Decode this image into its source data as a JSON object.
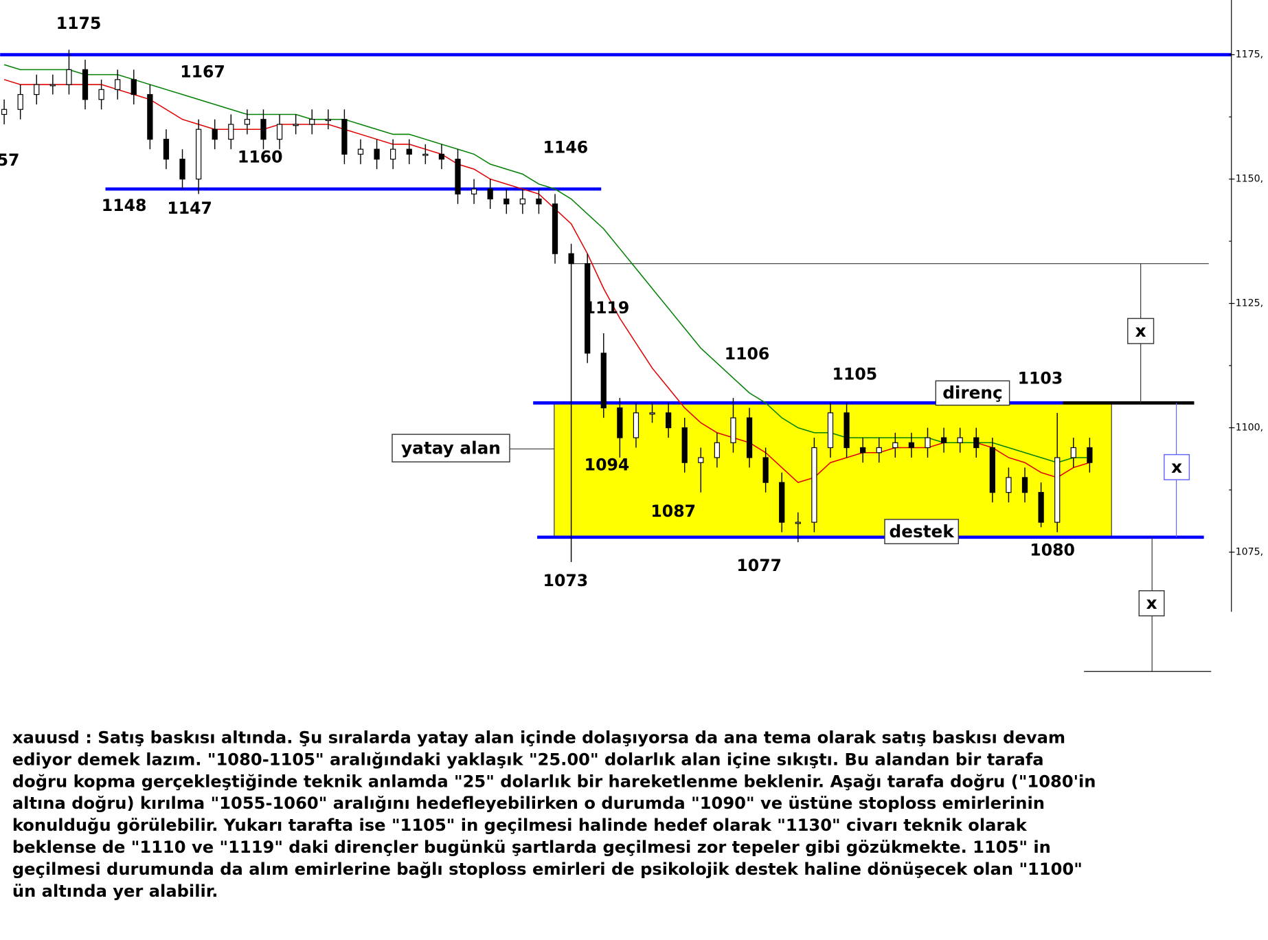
{
  "chart_data": {
    "type": "candlestick",
    "categories": [
      null,
      null,
      null,
      null,
      null,
      null,
      null,
      null,
      null,
      null,
      null,
      null,
      null,
      null,
      null,
      null,
      null,
      null,
      null,
      null,
      null,
      null,
      null,
      null,
      null,
      null,
      null,
      null,
      null,
      null,
      null,
      null,
      null,
      null,
      null,
      null,
      null,
      null,
      null,
      null,
      null,
      null,
      null,
      null,
      null,
      null,
      null,
      null,
      null,
      null,
      null,
      null,
      null,
      null,
      null,
      null,
      null,
      null,
      null,
      null,
      null,
      null,
      null,
      null,
      null,
      null,
      null,
      null
    ],
    "open": [
      1163,
      1164,
      1167,
      1169,
      1169,
      1172,
      1166,
      1168,
      1170,
      1167,
      1158,
      1154,
      1150,
      1160,
      1158,
      1161,
      1162,
      1158,
      1161,
      1161,
      1162,
      1162,
      1155,
      1156,
      1154,
      1156,
      1155,
      1155,
      1154,
      1147,
      1148,
      1146,
      1145,
      1146,
      1145,
      1135,
      1133,
      1115,
      1104,
      1098,
      1103,
      1103,
      1100,
      1093,
      1094,
      1097,
      1102,
      1094,
      1089,
      1081,
      1081,
      1096,
      1103,
      1096,
      1095,
      1096,
      1097,
      1096,
      1098,
      1097,
      1098,
      1096,
      1087,
      1090,
      1087,
      1081,
      1094,
      1096
    ],
    "high": [
      1166,
      1169,
      1171,
      1171,
      1176,
      1174,
      1170,
      1172,
      1172,
      1169,
      1160,
      1156,
      1162,
      1162,
      1163,
      1164,
      1164,
      1163,
      1163,
      1164,
      1164,
      1164,
      1158,
      1158,
      1158,
      1158,
      1157,
      1157,
      1156,
      1150,
      1150,
      1148,
      1148,
      1148,
      1147,
      1137,
      1135,
      1119,
      1106,
      1105,
      1105,
      1105,
      1102,
      1096,
      1099,
      1106,
      1104,
      1096,
      1091,
      1083,
      1098,
      1105,
      1105,
      1098,
      1098,
      1099,
      1099,
      1100,
      1100,
      1100,
      1100,
      1098,
      1092,
      1092,
      1089,
      1103,
      1098,
      1098
    ],
    "low": [
      1161,
      1162,
      1165,
      1167,
      1167,
      1164,
      1164,
      1166,
      1165,
      1156,
      1152,
      1148,
      1147,
      1156,
      1156,
      1159,
      1156,
      1156,
      1159,
      1159,
      1160,
      1153,
      1153,
      1152,
      1152,
      1153,
      1153,
      1152,
      1145,
      1145,
      1144,
      1143,
      1143,
      1143,
      1133,
      1073,
      1113,
      1102,
      1094,
      1096,
      1101,
      1098,
      1091,
      1087,
      1092,
      1095,
      1092,
      1087,
      1079,
      1077,
      1079,
      1094,
      1094,
      1093,
      1093,
      1094,
      1094,
      1094,
      1095,
      1095,
      1094,
      1085,
      1085,
      1085,
      1080,
      1079,
      1092,
      1091
    ],
    "close": [
      1164,
      1167,
      1169,
      1169,
      1172,
      1166,
      1168,
      1170,
      1167,
      1158,
      1154,
      1150,
      1160,
      1158,
      1161,
      1162,
      1158,
      1161,
      1161,
      1162,
      1162,
      1155,
      1156,
      1154,
      1156,
      1155,
      1155,
      1154,
      1147,
      1148,
      1146,
      1145,
      1146,
      1145,
      1135,
      1133,
      1115,
      1104,
      1098,
      1103,
      1103,
      1100,
      1093,
      1094,
      1097,
      1102,
      1094,
      1089,
      1081,
      1081,
      1096,
      1103,
      1096,
      1095,
      1096,
      1097,
      1096,
      1098,
      1097,
      1098,
      1096,
      1087,
      1090,
      1087,
      1081,
      1094,
      1096,
      1093
    ],
    "series": [
      {
        "color": "#e00000",
        "values": [
          1170,
          1169,
          1169,
          1169,
          1169,
          1169,
          1169,
          1168,
          1167,
          1166,
          1164,
          1162,
          1161,
          1160,
          1160,
          1160,
          1160,
          1161,
          1161,
          1161,
          1161,
          1160,
          1159,
          1158,
          1157,
          1157,
          1156,
          1155,
          1153,
          1152,
          1150,
          1149,
          1148,
          1147,
          1144,
          1141,
          1135,
          1128,
          1122,
          1117,
          1112,
          1108,
          1104,
          1101,
          1099,
          1098,
          1097,
          1095,
          1092,
          1089,
          1090,
          1093,
          1094,
          1095,
          1095,
          1096,
          1096,
          1096,
          1097,
          1097,
          1097,
          1096,
          1094,
          1093,
          1091,
          1090,
          1092,
          1093
        ]
      },
      {
        "color": "#008000",
        "values": [
          1173,
          1172,
          1172,
          1172,
          1172,
          1171,
          1171,
          1171,
          1170,
          1169,
          1168,
          1167,
          1166,
          1165,
          1164,
          1163,
          1163,
          1163,
          1163,
          1162,
          1162,
          1162,
          1161,
          1160,
          1159,
          1159,
          1158,
          1157,
          1156,
          1155,
          1153,
          1152,
          1151,
          1149,
          1148,
          1146,
          1143,
          1140,
          1136,
          1132,
          1128,
          1124,
          1120,
          1116,
          1113,
          1110,
          1107,
          1105,
          1102,
          1100,
          1099,
          1099,
          1098,
          1098,
          1098,
          1098,
          1098,
          1098,
          1097,
          1097,
          1097,
          1097,
          1096,
          1095,
          1094,
          1093,
          1094,
          1094
        ]
      }
    ],
    "ylim": [
      1063,
      1186
    ],
    "yticks": [
      {
        "value": 1175,
        "label": "1175,"
      },
      {
        "value": 1150,
        "label": "1150,"
      },
      {
        "value": 1125,
        "label": "1125,"
      },
      {
        "value": 1100,
        "label": "1100,"
      },
      {
        "value": 1075,
        "label": "1075,"
      }
    ],
    "levels": [
      {
        "value": 1175,
        "color": "#0000ff"
      },
      {
        "value": 1148,
        "color": "#0000ff"
      },
      {
        "value": 1105,
        "color": "#0000ff"
      },
      {
        "value": 1078,
        "color": "#0000ff"
      },
      {
        "value": 1133,
        "color": "#333333"
      },
      {
        "value": 1051,
        "color": "#333333"
      }
    ],
    "range_color": "#ffff00",
    "annotations": [
      "1175",
      "1167",
      "57",
      "1160",
      "1148",
      "1147",
      "1146",
      "1119",
      "1106",
      "1105",
      "1103",
      "1094",
      "1087",
      "1077",
      "1073",
      "1080"
    ],
    "boxed_labels": [
      "yatay alan",
      "direnç",
      "destek",
      "x",
      "x",
      "x"
    ]
  },
  "text_lines": [
    "xauusd : Satış baskısı altında. Şu sıralarda yatay alan içinde dolaşıyorsa da ana tema olarak satış baskısı devam",
    "ediyor demek lazım. \"1080-1105\" aralığındaki yaklaşık \"25.00\" dolarlık alan içine sıkıştı. Bu alandan bir tarafa",
    "doğru kopma gerçekleştiğinde teknik anlamda \"25\" dolarlık bir hareketlenme beklenir. Aşağı tarafa doğru (\"1080'in",
    "altına doğru) kırılma \"1055-1060\" aralığını hedefleyebilirken o durumda \"1090\" ve üstüne stoploss emirlerinin",
    "konulduğu görülebilir. Yukarı tarafta ise \"1105\" in geçilmesi halinde hedef olarak \"1130\" civarı teknik olarak",
    "beklense de \"1110 ve \"1119\" daki dirençler bugünkü şartlarda geçilmesi zor tepeler gibi gözükmekte. 1105\" in",
    "geçilmesi durumunda da alım emirlerine bağlı stoploss emirleri de psikolojik destek haline dönüşecek olan \"1100\"",
    "ün altında yer alabilir."
  ]
}
